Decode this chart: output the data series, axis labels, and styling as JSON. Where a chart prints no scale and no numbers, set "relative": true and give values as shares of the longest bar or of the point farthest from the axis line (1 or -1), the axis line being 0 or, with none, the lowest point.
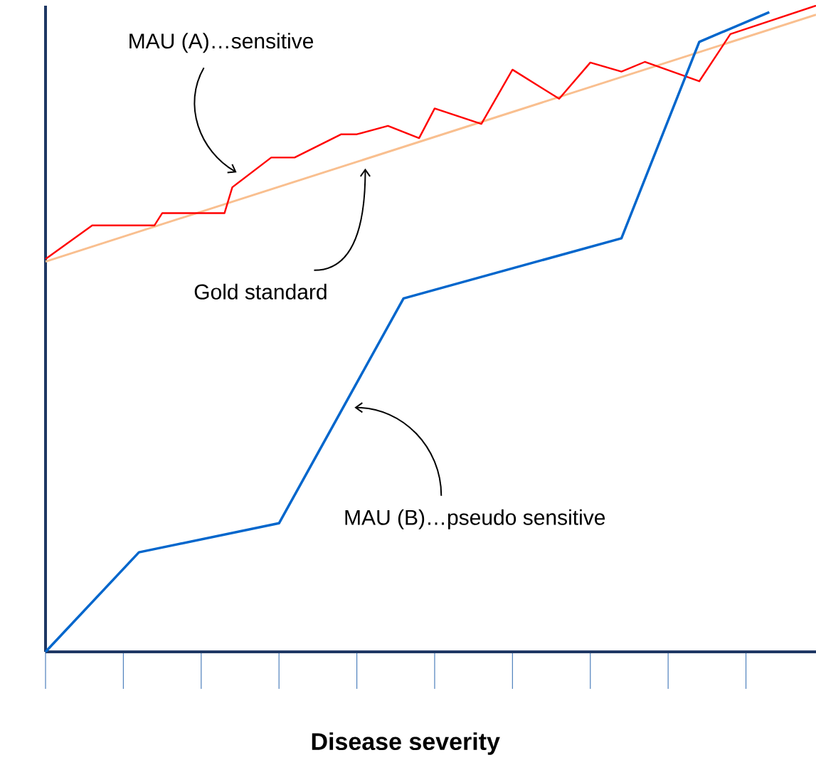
{
  "chart_data": {
    "type": "line",
    "relative": true,
    "marker": "none",
    "xlabel": "**Disease severity**",
    "categories": [
      null,
      null,
      null,
      null,
      null,
      null,
      null,
      null,
      null,
      null,
      null,
      null,
      null,
      null,
      null,
      null,
      null,
      null,
      null,
      null,
      null,
      null,
      null,
      null,
      null,
      null,
      null,
      null,
      null,
      null,
      null,
      null,
      null,
      null,
      null,
      null,
      null,
      null,
      null,
      null,
      null,
      null,
      null,
      null,
      null,
      null,
      null,
      null,
      null,
      null,
      null,
      null,
      null,
      null,
      null,
      null,
      null,
      null,
      null,
      null,
      null,
      null,
      null,
      null,
      null,
      null,
      null,
      null,
      null,
      null,
      null,
      null,
      null,
      null,
      null,
      null,
      null,
      null,
      null,
      null,
      null,
      null,
      null,
      null,
      null,
      null,
      null,
      null,
      null,
      null,
      null,
      null,
      null,
      null,
      null,
      null,
      null,
      null,
      null,
      null
    ],
    "series": [
      {
        "color": "#f9bf8f",
        "values": [
          0.604,
          null,
          null,
          null,
          null,
          null,
          null,
          null,
          null,
          null,
          null,
          null,
          null,
          null,
          null,
          null,
          null,
          null,
          null,
          null,
          null,
          null,
          null,
          null,
          null,
          null,
          null,
          null,
          null,
          null,
          null,
          null,
          null,
          null,
          null,
          null,
          null,
          null,
          null,
          null,
          null,
          null,
          null,
          null,
          null,
          null,
          null,
          null,
          null,
          null,
          null,
          null,
          null,
          null,
          null,
          null,
          null,
          null,
          null,
          null,
          null,
          null,
          null,
          null,
          null,
          null,
          null,
          null,
          null,
          null,
          null,
          null,
          null,
          null,
          null,
          null,
          null,
          null,
          null,
          null,
          null,
          null,
          null,
          null,
          null,
          null,
          null,
          null,
          null,
          null,
          null,
          null,
          null,
          null,
          null,
          null,
          null,
          null,
          null,
          0.986
        ]
      },
      {
        "color": "#ff0000",
        "values": [
          0.608,
          null,
          null,
          null,
          null,
          null,
          0.66,
          null,
          null,
          null,
          null,
          null,
          null,
          null,
          0.66,
          0.679,
          null,
          null,
          null,
          null,
          null,
          null,
          null,
          0.679,
          0.719,
          null,
          null,
          null,
          null,
          0.765,
          null,
          null,
          0.765,
          null,
          null,
          null,
          null,
          null,
          0.801,
          null,
          0.801,
          null,
          null,
          null,
          0.814,
          null,
          null,
          null,
          0.795,
          null,
          0.841,
          null,
          null,
          null,
          null,
          null,
          0.817,
          null,
          null,
          null,
          0.901,
          null,
          null,
          null,
          null,
          null,
          0.856,
          null,
          null,
          null,
          0.912,
          null,
          null,
          null,
          0.898,
          null,
          null,
          0.913,
          null,
          null,
          null,
          null,
          null,
          null,
          0.883,
          null,
          null,
          null,
          0.956,
          null,
          null,
          null,
          null,
          null,
          null,
          null,
          null,
          null,
          null,
          1.0
        ]
      },
      {
        "color": "#0066cc",
        "values": [
          0,
          null,
          null,
          null,
          null,
          null,
          null,
          null,
          null,
          null,
          null,
          null,
          0.154,
          null,
          null,
          null,
          null,
          null,
          null,
          null,
          null,
          null,
          null,
          null,
          null,
          null,
          null,
          null,
          null,
          null,
          0.199,
          null,
          null,
          null,
          null,
          null,
          null,
          null,
          null,
          null,
          null,
          null,
          null,
          null,
          null,
          null,
          0.547,
          null,
          null,
          null,
          null,
          null,
          null,
          null,
          null,
          null,
          null,
          null,
          null,
          null,
          null,
          null,
          null,
          null,
          null,
          null,
          null,
          null,
          null,
          null,
          null,
          null,
          null,
          null,
          0.64,
          null,
          null,
          null,
          null,
          null,
          null,
          null,
          null,
          null,
          0.944,
          null,
          null,
          null,
          null,
          null,
          null,
          null,
          null,
          0.99,
          null,
          null,
          null,
          null,
          null,
          null
        ]
      }
    ],
    "annotations": [
      "MAU (A)…sensitive",
      "Gold standard",
      "MAU (B)…pseudo sensitive"
    ]
  }
}
